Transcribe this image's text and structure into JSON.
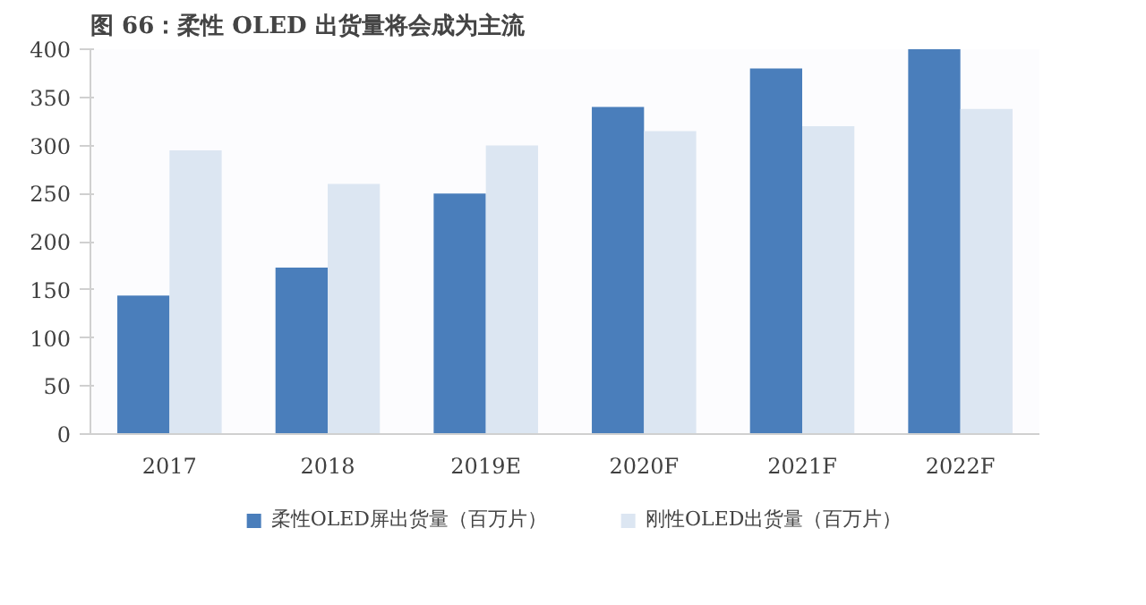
{
  "chart_data": {
    "type": "bar",
    "title": "图 66：柔性 OLED 出货量将会成为主流",
    "categories": [
      "2017",
      "2018",
      "2019E",
      "2020F",
      "2021F",
      "2022F"
    ],
    "series": [
      {
        "name": "柔性OLED屏出货量（百万片）",
        "color": "#4a7ebb",
        "values": [
          144,
          173,
          250,
          340,
          380,
          400
        ]
      },
      {
        "name": "刚性OLED出货量（百万片）",
        "color": "#dce6f2",
        "values": [
          295,
          260,
          300,
          315,
          320,
          338
        ]
      }
    ],
    "ylim": [
      0,
      400
    ],
    "yticks": [
      0,
      50,
      100,
      150,
      200,
      250,
      300,
      350,
      400
    ],
    "grid": false,
    "legend": "bottom"
  }
}
